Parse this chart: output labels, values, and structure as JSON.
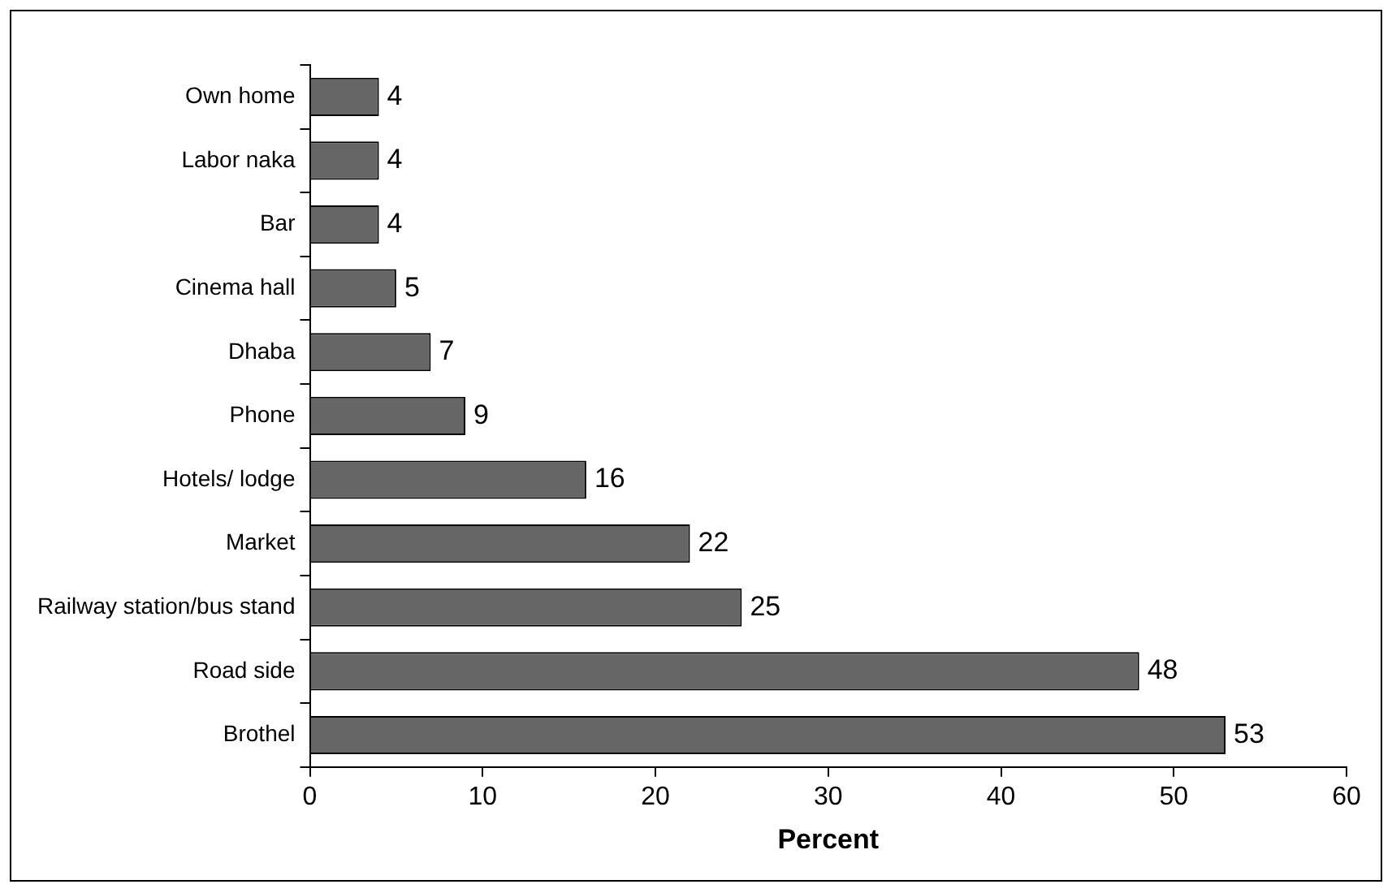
{
  "chart_data": {
    "type": "bar",
    "orientation": "horizontal",
    "xlabel": "Percent",
    "categories": [
      "Own home",
      "Labor naka",
      "Bar",
      "Cinema hall",
      "Dhaba",
      "Phone",
      "Hotels/ lodge",
      "Market",
      "Railway station/bus stand",
      "Road side",
      "Brothel"
    ],
    "values": [
      4,
      4,
      4,
      5,
      7,
      9,
      16,
      22,
      25,
      48,
      53
    ],
    "color": "#666666",
    "xlim": [
      0,
      60
    ],
    "xticks": [
      0,
      10,
      20,
      30,
      40,
      50,
      60
    ],
    "grid": false,
    "legend": false,
    "data_labels": true
  }
}
